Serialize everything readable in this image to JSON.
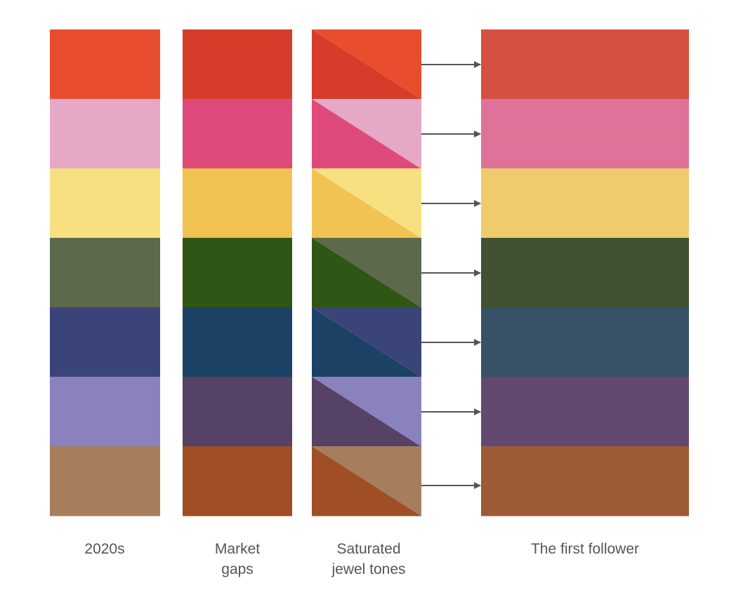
{
  "columns": [
    {
      "label": "2020s",
      "colors": [
        "#E84D2E",
        "#E6A8C7",
        "#F7E07F",
        "#5C694B",
        "#3B4479",
        "#8982BD",
        "#A77E5C"
      ]
    },
    {
      "label": "Market\ngaps",
      "colors": [
        "#D63C2A",
        "#DE4B7B",
        "#F1C352",
        "#2F5614",
        "#1B4165",
        "#554264",
        "#A04E26"
      ]
    },
    {
      "label": "Saturated\njewel tones",
      "colors": []
    },
    {
      "label": "The first follower",
      "colors": [
        "#D54F42",
        "#DE7298",
        "#EFCB6E",
        "#415233",
        "#375266",
        "#624970",
        "#9D5A36"
      ]
    }
  ],
  "arrow_color": "#555555"
}
